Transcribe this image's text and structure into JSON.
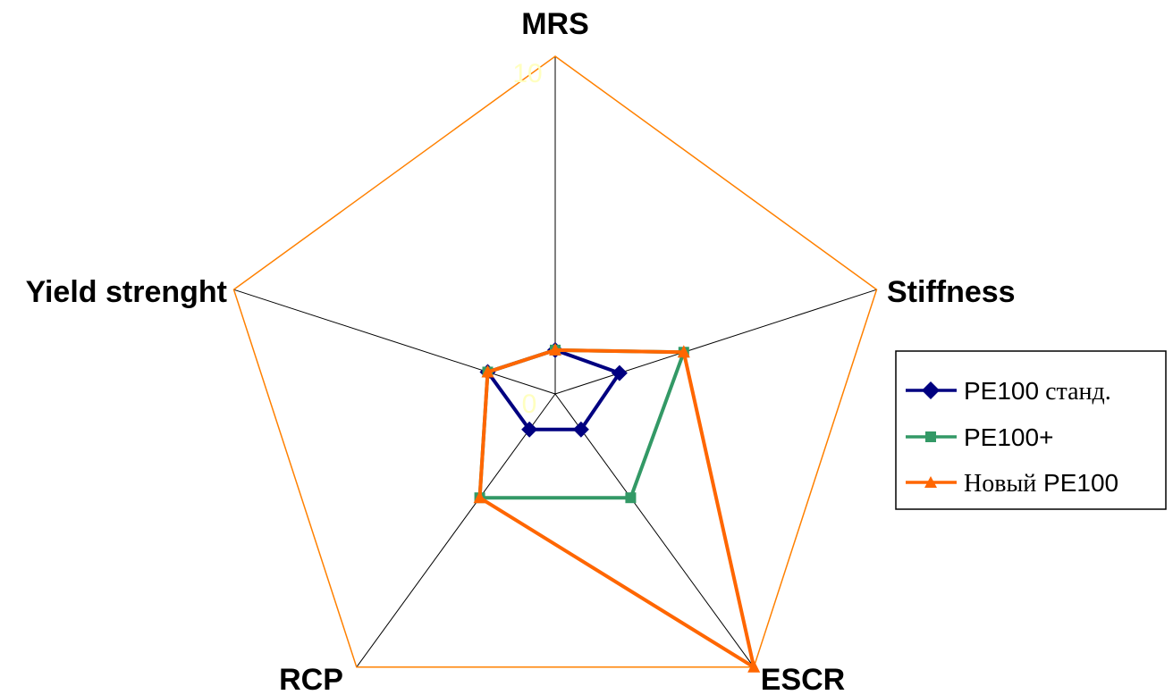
{
  "chart_data": {
    "type": "radar",
    "title": "",
    "axes": [
      "MRS",
      "Stiffness",
      "ESCR",
      "RCP",
      "Yield strenght"
    ],
    "range": [
      0,
      10
    ],
    "tick_labels": [
      "0",
      "10"
    ],
    "series": [
      {
        "name": "PE100 станд.",
        "values": [
          1.3,
          2.0,
          1.3,
          1.3,
          2.1
        ],
        "color": "#000080",
        "marker": "diamond"
      },
      {
        "name": "PE100+",
        "values": [
          1.3,
          4.0,
          3.8,
          3.8,
          2.1
        ],
        "color": "#339966",
        "marker": "square"
      },
      {
        "name": "Новый PE100",
        "values": [
          1.3,
          4.0,
          10.0,
          3.8,
          2.1
        ],
        "color": "#FF6600",
        "marker": "triangle"
      }
    ],
    "legend": {
      "placement": "right",
      "items": [
        {
          "prefix": "PE100",
          "suffix": " станд."
        },
        {
          "prefix": "PE100+",
          "suffix": ""
        },
        {
          "prefix": "Новый",
          "suffix": " PE100"
        }
      ]
    },
    "colors": {
      "outer_ring": "#FF8000",
      "spokes": "#000000",
      "tick_text": "#FFFFC0"
    }
  }
}
